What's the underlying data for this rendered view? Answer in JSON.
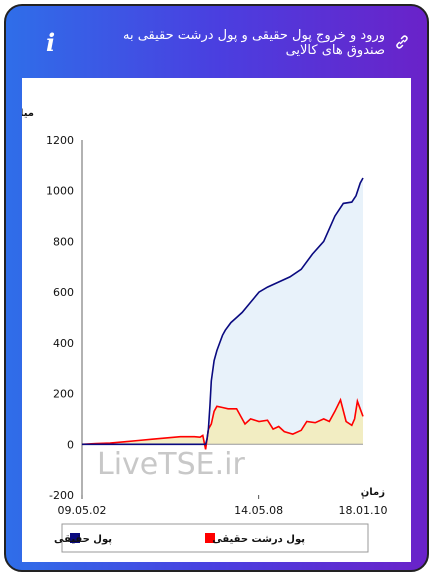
{
  "header": {
    "title": "ورود و خروج پول حقیقی و پول درشت حقیقی به صندوق های کالایی",
    "info_glyph": "i",
    "link_icon": "link-icon"
  },
  "watermark": "LiveTSE.ir",
  "colors": {
    "series_real_money": "#0a0a80",
    "series_big_money": "#ff0000",
    "fill_real_money": "#e8f2fa",
    "fill_big_money": "#f2edc2"
  },
  "chart_data": {
    "type": "line",
    "ylabel": "میلیارد تومان",
    "xlabel": "زمان",
    "ylim": [
      -200,
      1200
    ],
    "yticks": [
      1200,
      1000,
      800,
      600,
      400,
      200,
      0,
      -200
    ],
    "xticks": [
      "09.05.02",
      "14.05.08",
      "18.01.10"
    ],
    "xtick_positions": [
      0,
      0.6286,
      1
    ],
    "grid": false,
    "legend": {
      "placement": "bottom"
    },
    "series": [
      {
        "name": "پول حقیقی",
        "x": [
          0,
          0.1,
          0.2,
          0.3,
          0.4,
          0.44,
          0.445,
          0.45,
          0.455,
          0.46,
          0.47,
          0.48,
          0.49,
          0.5,
          0.51,
          0.53,
          0.55,
          0.57,
          0.6,
          0.63,
          0.66,
          0.7,
          0.74,
          0.78,
          0.82,
          0.86,
          0.88,
          0.9,
          0.93,
          0.96,
          0.975,
          0.99,
          1.0
        ],
        "values": [
          0,
          0,
          0,
          0,
          0,
          0,
          20,
          60,
          150,
          250,
          330,
          370,
          400,
          430,
          450,
          480,
          500,
          520,
          560,
          600,
          620,
          640,
          660,
          690,
          750,
          800,
          850,
          900,
          950,
          955,
          980,
          1030,
          1050
        ]
      },
      {
        "name": "پول درشت حقیقی",
        "x": [
          0,
          0.05,
          0.1,
          0.15,
          0.2,
          0.25,
          0.3,
          0.35,
          0.4,
          0.42,
          0.43,
          0.44,
          0.45,
          0.46,
          0.47,
          0.48,
          0.5,
          0.52,
          0.55,
          0.58,
          0.6,
          0.63,
          0.66,
          0.68,
          0.7,
          0.72,
          0.75,
          0.78,
          0.8,
          0.83,
          0.86,
          0.88,
          0.9,
          0.92,
          0.94,
          0.96,
          0.97,
          0.98,
          0.99,
          1.0
        ],
        "values": [
          0,
          3,
          5,
          10,
          15,
          20,
          25,
          30,
          30,
          28,
          35,
          -20,
          60,
          80,
          130,
          150,
          145,
          140,
          140,
          80,
          100,
          90,
          95,
          60,
          70,
          50,
          40,
          55,
          90,
          85,
          100,
          90,
          130,
          175,
          90,
          75,
          100,
          170,
          140,
          110
        ]
      }
    ]
  }
}
